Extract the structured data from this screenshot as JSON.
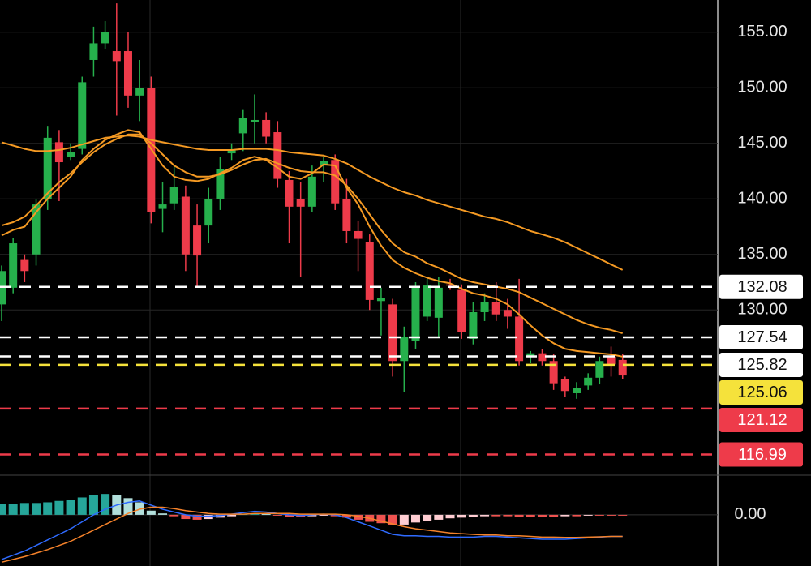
{
  "chart_data": [
    {
      "type": "candlestick",
      "open": [
        130.5,
        132,
        134.5,
        135,
        140,
        145.1,
        143.8,
        144.5,
        152.5,
        154,
        153.3,
        153.3,
        149.3,
        150,
        139.1,
        139.6,
        140.2,
        137.6,
        137.6,
        140,
        144.1,
        145.9,
        146.9,
        147.1,
        146,
        141.7,
        140,
        139.3,
        143.0,
        143.5,
        140,
        137.1,
        136.1,
        130.8,
        130.5,
        125.4,
        127.2,
        129.4,
        129.3,
        132.3,
        131.8,
        127.4,
        129.8,
        130.7,
        130,
        129.4,
        125.8,
        126.1,
        125.4,
        123.8,
        122.5,
        123.2,
        123.9,
        125.8,
        125.5
      ],
      "close": [
        133.5,
        136,
        133.5,
        139.5,
        145.5,
        143.3,
        144.2,
        150.5,
        154,
        155,
        152.4,
        149.3,
        150,
        138.8,
        139.5,
        141.1,
        135,
        134.9,
        140,
        142.7,
        144.4,
        147.3,
        147.1,
        145.6,
        141.8,
        139.3,
        139.3,
        142,
        143.4,
        139.6,
        137.1,
        136.4,
        130.9,
        131.1,
        125.4,
        127.6,
        132,
        132.2,
        132,
        132.2,
        128,
        129.8,
        130.7,
        129.6,
        129.4,
        125.4,
        126.1,
        125.4,
        123.4,
        122.7,
        123,
        123.9,
        125.4,
        125.1,
        124.1
      ],
      "high": [
        134,
        136.5,
        135,
        140,
        146.5,
        146.2,
        145,
        151,
        155.5,
        156,
        157.6,
        155,
        152.5,
        151,
        141.5,
        143,
        141.2,
        139.5,
        141,
        143.8,
        145,
        148,
        149.4,
        147.8,
        147,
        142.5,
        141.5,
        143,
        143.8,
        144,
        141.8,
        138,
        136.8,
        132,
        131,
        128.5,
        132.5,
        132.8,
        133,
        132.8,
        132.3,
        130.7,
        131.5,
        132.5,
        131,
        132.8,
        126.3,
        126.5,
        126,
        124,
        123.5,
        124.3,
        125.8,
        126.7,
        126
      ],
      "low": [
        129,
        131.5,
        132.5,
        134,
        139,
        139.8,
        143.5,
        144,
        151,
        153.5,
        147.5,
        148.2,
        147,
        137.8,
        137,
        139,
        133.5,
        132,
        136,
        139,
        143.5,
        144.3,
        145,
        145,
        141,
        136,
        133,
        138.8,
        141.5,
        139,
        136,
        133.5,
        130,
        127.7,
        124,
        122.6,
        126.5,
        129,
        127.5,
        131.8,
        127.4,
        126.9,
        129,
        129,
        128.3,
        125,
        125.2,
        125,
        122.8,
        122.2,
        122,
        122.8,
        123.3,
        124,
        123.8
      ],
      "up_color": "#26b04c",
      "down_color": "#ee3b4a",
      "series": [
        {
          "color": "#f59a23",
          "values": [
            145.1,
            144.8,
            144.5,
            144.3,
            144.3,
            144.4,
            144.6,
            144.9,
            145.2,
            145.5,
            145.6,
            145.7,
            145.6,
            145.3,
            145.1,
            144.9,
            144.7,
            144.5,
            144.4,
            144.4,
            144.4,
            144.5,
            144.5,
            144.5,
            144.4,
            144.2,
            144.1,
            144.0,
            143.9,
            143.6,
            143.2,
            142.6,
            142.0,
            141.5,
            141.0,
            140.6,
            140.3,
            139.9,
            139.6,
            139.3,
            139.0,
            138.7,
            138.4,
            138.2,
            137.9,
            137.5,
            137.1,
            136.8,
            136.5,
            136.1,
            135.6,
            135.1,
            134.6,
            134.1,
            133.6
          ]
        },
        {
          "color": "#f59a23",
          "values": [
            137.6,
            137.9,
            138.4,
            139.4,
            140.5,
            141.5,
            142.3,
            143.3,
            144.2,
            144.9,
            145.4,
            145.8,
            145.8,
            145.0,
            144.0,
            143.0,
            142.4,
            142.0,
            142.0,
            142.2,
            142.6,
            143.1,
            143.5,
            143.6,
            143.2,
            142.8,
            142.5,
            142.4,
            142.4,
            142.1,
            141.2,
            140.0,
            138.6,
            137.2,
            136.0,
            135.2,
            134.8,
            134.2,
            133.8,
            133.3,
            132.8,
            132.5,
            132.3,
            132.1,
            131.9,
            131.6,
            131.1,
            130.6,
            130.1,
            129.6,
            129.1,
            128.7,
            128.4,
            128.2,
            127.9
          ]
        },
        {
          "color": "#f59a23",
          "values": [
            136.7,
            137.2,
            137.5,
            138.8,
            140.0,
            141.0,
            142.0,
            143.5,
            144.5,
            145.3,
            145.8,
            146.2,
            146.0,
            144.5,
            143.0,
            142.0,
            141.7,
            141.6,
            141.8,
            142.3,
            142.8,
            143.5,
            143.8,
            143.5,
            142.8,
            142.0,
            141.8,
            142.3,
            143.1,
            143.0,
            141.0,
            139.5,
            137.5,
            135.8,
            134.5,
            133.8,
            133.3,
            132.9,
            132.6,
            132.4,
            131.9,
            131.5,
            131.3,
            131.0,
            130.5,
            129.6,
            128.6,
            127.7,
            127.0,
            126.5,
            126.3,
            126.2,
            126.1,
            126.0,
            125.8
          ]
        }
      ],
      "levels": {
        "values": [
          132.08,
          127.54,
          125.82,
          125.06,
          121.12,
          116.99
        ],
        "colors": [
          "#ffffff",
          "#ffffff",
          "#ffffff",
          "#f5e23b",
          "#ee3b4a",
          "#ee3b4a"
        ]
      },
      "ylim": [
        115.2,
        157.9
      ],
      "yticks": [
        {
          "value": 155,
          "label": "155.00"
        },
        {
          "value": 150,
          "label": "150.00"
        },
        {
          "value": 145,
          "label": "145.00"
        },
        {
          "value": 140,
          "label": "140.00"
        },
        {
          "value": 135,
          "label": "135.00"
        },
        {
          "value": 130,
          "label": "130.00"
        }
      ],
      "grid": true
    },
    {
      "type": "macd",
      "histogram": [
        0.8,
        0.8,
        0.85,
        0.85,
        0.9,
        1.0,
        1.1,
        1.25,
        1.4,
        1.5,
        1.45,
        1.2,
        0.9,
        0.3,
        0.1,
        -0.1,
        -0.3,
        -0.35,
        -0.3,
        -0.2,
        -0.1,
        0.05,
        0.1,
        0.05,
        -0.05,
        -0.15,
        -0.15,
        -0.1,
        -0.05,
        -0.1,
        -0.2,
        -0.35,
        -0.5,
        -0.6,
        -0.75,
        -0.7,
        -0.55,
        -0.45,
        -0.35,
        -0.25,
        -0.2,
        -0.15,
        -0.1,
        -0.1,
        -0.1,
        -0.15,
        -0.15,
        -0.15,
        -0.15,
        -0.1,
        -0.1,
        -0.05,
        -0.05,
        -0.05,
        -0.05
      ],
      "histogram_colors": {
        "up_rising": "#26a69a",
        "up_falling": "#b2dfdb",
        "down_falling": "#ef5350",
        "down_rising": "#ffcdd2"
      },
      "series": [
        {
          "color": "#2f6bff",
          "values": [
            -3.2,
            -2.9,
            -2.6,
            -2.2,
            -1.8,
            -1.4,
            -1.0,
            -0.5,
            0.0,
            0.4,
            0.7,
            0.9,
            1.0,
            0.7,
            0.4,
            0.2,
            0.0,
            -0.1,
            -0.1,
            -0.05,
            0.05,
            0.15,
            0.25,
            0.2,
            0.1,
            0.0,
            -0.05,
            0.0,
            0.05,
            0.0,
            -0.2,
            -0.5,
            -0.8,
            -1.1,
            -1.4,
            -1.5,
            -1.5,
            -1.55,
            -1.55,
            -1.6,
            -1.6,
            -1.6,
            -1.55,
            -1.55,
            -1.6,
            -1.65,
            -1.7,
            -1.75,
            -1.75,
            -1.75,
            -1.7,
            -1.65,
            -1.6,
            -1.55,
            -1.55
          ]
        },
        {
          "color": "#f5822a",
          "values": [
            -3.4,
            -3.2,
            -3.0,
            -2.75,
            -2.5,
            -2.2,
            -1.9,
            -1.5,
            -1.1,
            -0.7,
            -0.3,
            0.1,
            0.4,
            0.55,
            0.55,
            0.45,
            0.3,
            0.2,
            0.1,
            0.05,
            0.05,
            0.05,
            0.1,
            0.1,
            0.1,
            0.1,
            0.05,
            0.05,
            0.05,
            0.05,
            0.0,
            -0.1,
            -0.25,
            -0.45,
            -0.65,
            -0.85,
            -1.0,
            -1.1,
            -1.2,
            -1.3,
            -1.35,
            -1.4,
            -1.45,
            -1.45,
            -1.5,
            -1.5,
            -1.55,
            -1.6,
            -1.6,
            -1.62,
            -1.62,
            -1.6,
            -1.58,
            -1.55,
            -1.55
          ]
        }
      ],
      "ylim": [
        -3.5,
        2.5
      ],
      "yticks": [
        {
          "value": 0,
          "label": "0.00"
        }
      ]
    }
  ]
}
